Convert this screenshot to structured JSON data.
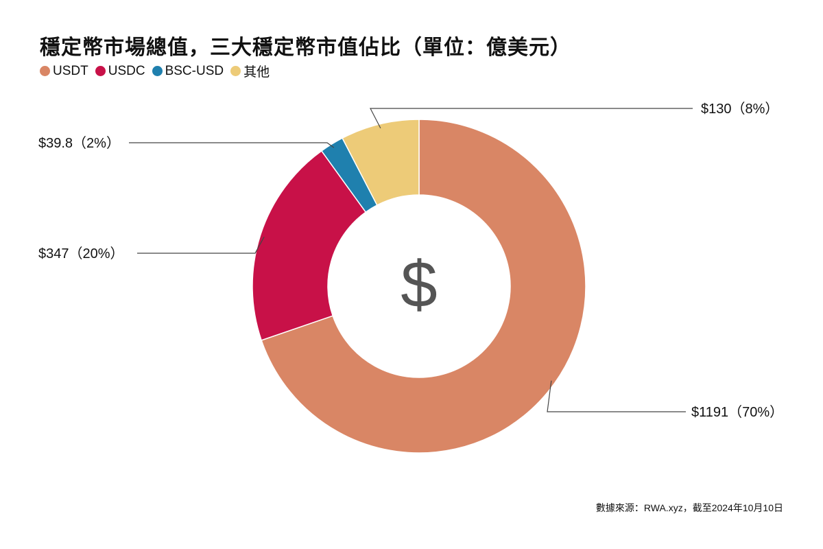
{
  "chart_data": {
    "type": "pie",
    "title": "穩定幣市場總值，三大穩定幣市值佔比（單位：億美元）",
    "center_symbol": "$",
    "slices": [
      {
        "name": "USDT",
        "value": 1191,
        "label": "$1191（70%）",
        "color": "#D98665"
      },
      {
        "name": "USDC",
        "value": 347,
        "label": "$347（20%）",
        "color": "#C81148"
      },
      {
        "name": "BSC-USD",
        "value": 39.8,
        "label": "$39.8（2%）",
        "color": "#1F80AE"
      },
      {
        "name": "其他",
        "value": 130,
        "label": "$130（8%）",
        "color": "#EDCB78"
      }
    ],
    "legend_placement": "top-left",
    "source": "數據來源：RWA.xyz，截至2024年10月10日"
  }
}
